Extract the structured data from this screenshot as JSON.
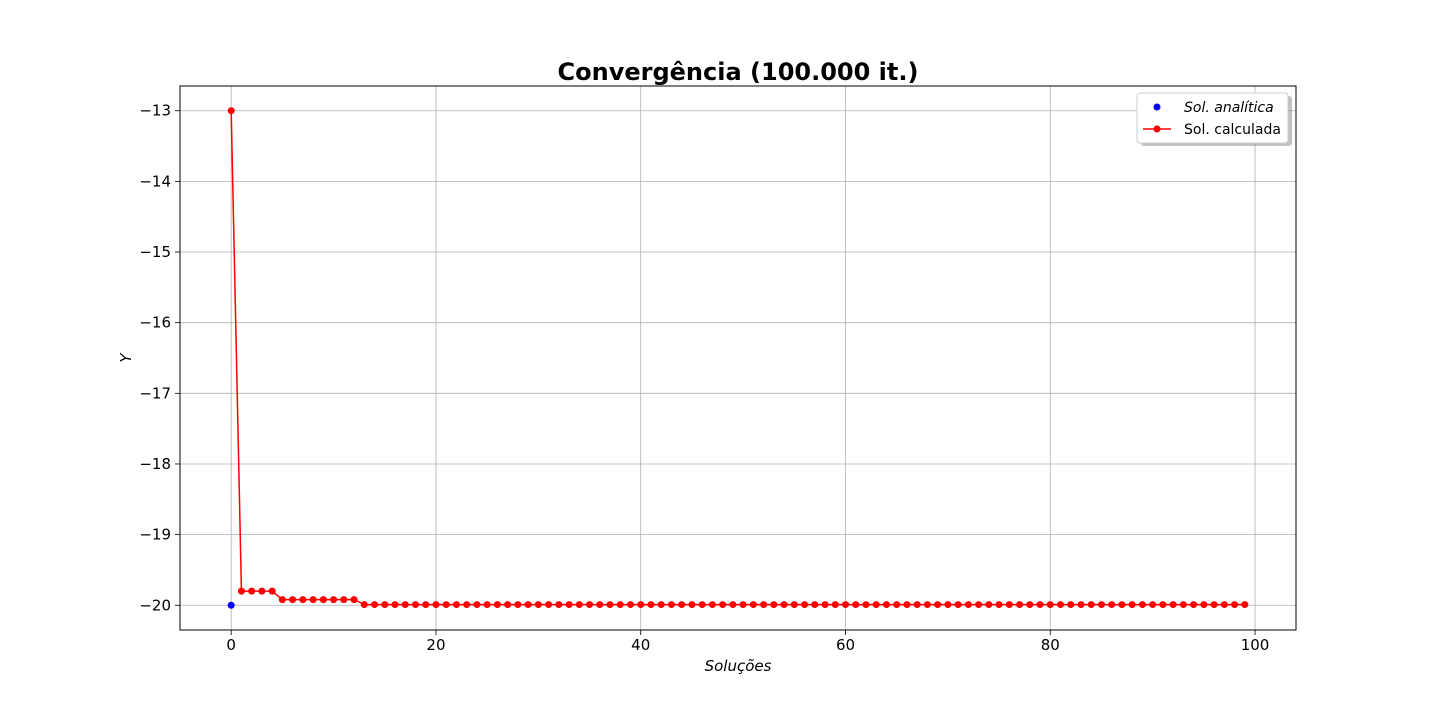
{
  "chart_data": {
    "type": "line",
    "title": "Convergência (100.000 it.)",
    "xlabel": "Soluções",
    "ylabel": "Y",
    "xlim": [
      -5,
      104
    ],
    "ylim": [
      -20.35,
      -12.65
    ],
    "xticks": [
      0,
      20,
      40,
      60,
      80,
      100
    ],
    "yticks": [
      -13,
      -14,
      -15,
      -16,
      -17,
      -18,
      -19,
      -20
    ],
    "xtick_labels": [
      "0",
      "20",
      "40",
      "60",
      "80",
      "100"
    ],
    "ytick_labels": [
      "−13",
      "−14",
      "−15",
      "−16",
      "−17",
      "−18",
      "−19",
      "−20"
    ],
    "grid": true,
    "legend_position": "top-right",
    "legend": [
      {
        "label": "Sol. analítica",
        "style": "italic"
      },
      {
        "label": "Sol. calculada",
        "style": "normal"
      }
    ],
    "series": [
      {
        "name": "Sol. analítica",
        "marker": "point",
        "color": "#0000ff",
        "x": [
          0
        ],
        "y": [
          -20
        ]
      },
      {
        "name": "Sol. calculada",
        "marker": "line-point",
        "color": "#ff0000",
        "x": [
          0,
          1,
          2,
          3,
          4,
          5,
          6,
          7,
          8,
          9,
          10,
          11,
          12,
          13,
          14,
          15,
          16,
          17,
          18,
          19,
          20,
          21,
          22,
          23,
          24,
          25,
          26,
          27,
          28,
          29,
          30,
          31,
          32,
          33,
          34,
          35,
          36,
          37,
          38,
          39,
          40,
          41,
          42,
          43,
          44,
          45,
          46,
          47,
          48,
          49,
          50,
          51,
          52,
          53,
          54,
          55,
          56,
          57,
          58,
          59,
          60,
          61,
          62,
          63,
          64,
          65,
          66,
          67,
          68,
          69,
          70,
          71,
          72,
          73,
          74,
          75,
          76,
          77,
          78,
          79,
          80,
          81,
          82,
          83,
          84,
          85,
          86,
          87,
          88,
          89,
          90,
          91,
          92,
          93,
          94,
          95,
          96,
          97,
          98,
          99
        ],
        "y": [
          -13,
          -19.8,
          -19.8,
          -19.8,
          -19.8,
          -19.92,
          -19.92,
          -19.92,
          -19.92,
          -19.92,
          -19.92,
          -19.92,
          -19.92,
          -19.99,
          -19.99,
          -19.99,
          -19.99,
          -19.99,
          -19.99,
          -19.99,
          -19.99,
          -19.99,
          -19.99,
          -19.99,
          -19.99,
          -19.99,
          -19.99,
          -19.99,
          -19.99,
          -19.99,
          -19.99,
          -19.99,
          -19.99,
          -19.99,
          -19.99,
          -19.99,
          -19.99,
          -19.99,
          -19.99,
          -19.99,
          -19.99,
          -19.99,
          -19.99,
          -19.99,
          -19.99,
          -19.99,
          -19.99,
          -19.99,
          -19.99,
          -19.99,
          -19.99,
          -19.99,
          -19.99,
          -19.99,
          -19.99,
          -19.99,
          -19.99,
          -19.99,
          -19.99,
          -19.99,
          -19.99,
          -19.99,
          -19.99,
          -19.99,
          -19.99,
          -19.99,
          -19.99,
          -19.99,
          -19.99,
          -19.99,
          -19.99,
          -19.99,
          -19.99,
          -19.99,
          -19.99,
          -19.99,
          -19.99,
          -19.99,
          -19.99,
          -19.99,
          -19.99,
          -19.99,
          -19.99,
          -19.99,
          -19.99,
          -19.99,
          -19.99,
          -19.99,
          -19.99,
          -19.99,
          -19.99,
          -19.99,
          -19.99,
          -19.99,
          -19.99,
          -19.99,
          -19.99,
          -19.99,
          -19.99,
          -19.99
        ]
      }
    ]
  }
}
